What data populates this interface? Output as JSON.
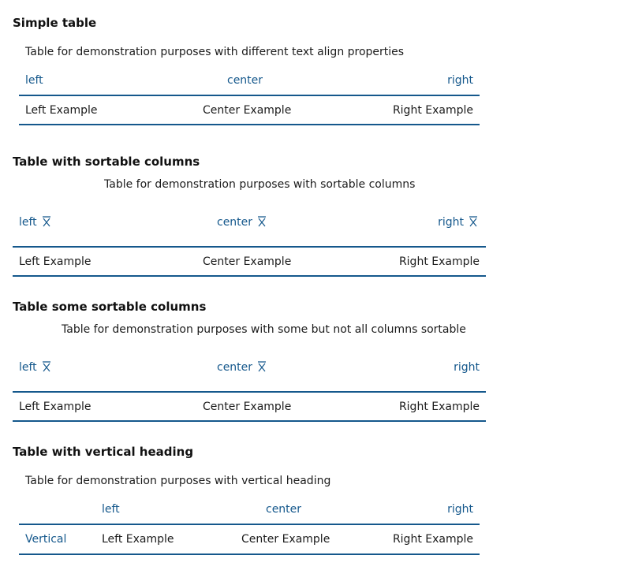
{
  "colors": {
    "accent": "#15588c",
    "text": "#1b1b1b"
  },
  "tables": [
    {
      "title": "Simple table",
      "caption": "Table for demonstration purposes with different text align properties",
      "headers": [
        "left",
        "center",
        "right"
      ],
      "row": [
        "Left Example",
        "Center Example",
        "Right Example"
      ]
    },
    {
      "title": "Table with sortable columns",
      "caption": "Table for demonstration purposes with sortable columns",
      "headers": [
        "left",
        "center",
        "right"
      ],
      "sortable": [
        true,
        true,
        true
      ],
      "row": [
        "Left Example",
        "Center Example",
        "Right Example"
      ]
    },
    {
      "title": "Table some sortable columns",
      "caption": "Table for demonstration purposes with some but not all columns sortable",
      "headers": [
        "left",
        "center",
        "right"
      ],
      "sortable": [
        true,
        true,
        false
      ],
      "row": [
        "Left Example",
        "Center Example",
        "Right Example"
      ]
    },
    {
      "title": "Table with vertical heading",
      "caption": "Table for demonstration purposes with vertical heading",
      "headers": [
        "left",
        "center",
        "right"
      ],
      "row_heading": "Vertical",
      "row": [
        "Left Example",
        "Center Example",
        "Right Example"
      ]
    }
  ],
  "icons": {
    "sort": "sort-icon"
  }
}
